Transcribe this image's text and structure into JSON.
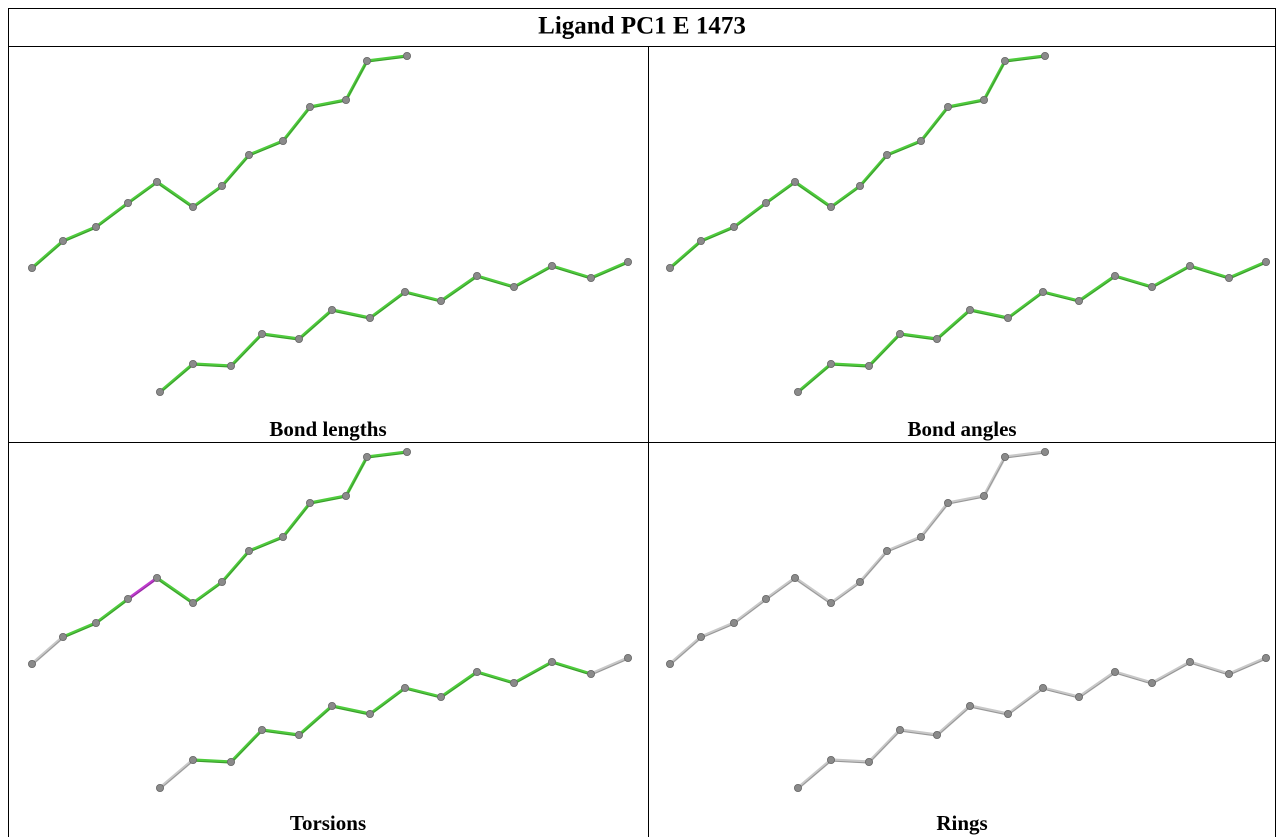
{
  "title": "Ligand PC1 E 1473",
  "panels": [
    {
      "label": "Bond lengths"
    },
    {
      "label": "Bond angles"
    },
    {
      "label": "Torsions"
    },
    {
      "label": "Rings"
    }
  ]
}
